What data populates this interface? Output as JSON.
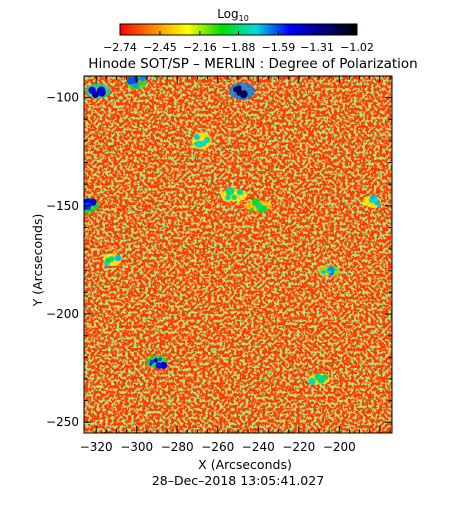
{
  "chart_data": {
    "type": "heatmap",
    "title": "Hinode SOT/SP – MERLIN : Degree of Polarization",
    "xlabel": "X (Arcseconds)",
    "ylabel": "Y (Arcseconds)",
    "xlim": [
      -326,
      -174
    ],
    "ylim": [
      -255,
      -90
    ],
    "xticks": [
      -320,
      -300,
      -280,
      -260,
      -240,
      -220,
      -200
    ],
    "yticks": [
      -100,
      -150,
      -200,
      -250
    ],
    "xtick_labels": [
      "−320",
      "−300",
      "−280",
      "−260",
      "−240",
      "−220",
      "−200"
    ],
    "ytick_labels": [
      "−100",
      "−150",
      "−200",
      "−250"
    ],
    "colorbar": {
      "label_main": "Log",
      "label_sub": "10",
      "scale": "log10",
      "range": [
        -2.74,
        -1.02
      ],
      "ticks": [
        -2.74,
        -2.45,
        -2.16,
        -1.88,
        -1.59,
        -1.31,
        -1.02
      ],
      "tick_labels": [
        "−2.74",
        "−2.45",
        "−2.16",
        "−1.88",
        "−1.59",
        "−1.31",
        "−1.02"
      ],
      "colormap": [
        "#ff0000",
        "#ff8c00",
        "#ffff00",
        "#00dd00",
        "#00dddd",
        "#0000ff",
        "#000080",
        "#000000"
      ]
    },
    "field_description_colors": {
      "background_dominant": "#ff3300",
      "speckle": "#ffaa00",
      "network_green": "#66cc33",
      "network_cyan": "#00bbcc",
      "strong_blue": "#0011cc"
    },
    "strong_polarization_patches": [
      {
        "x": -248,
        "y": -97,
        "value": -1.2
      },
      {
        "x": -319,
        "y": -97,
        "value": -1.4
      },
      {
        "x": -300,
        "y": -93,
        "value": -1.6
      },
      {
        "x": -325,
        "y": -150,
        "value": -1.5
      },
      {
        "x": -290,
        "y": -222,
        "value": -1.5
      },
      {
        "x": -268,
        "y": -120,
        "value": -1.8
      },
      {
        "x": -252,
        "y": -145,
        "value": -1.8
      },
      {
        "x": -240,
        "y": -150,
        "value": -1.9
      },
      {
        "x": -205,
        "y": -180,
        "value": -1.7
      },
      {
        "x": -184,
        "y": -148,
        "value": -1.8
      },
      {
        "x": -210,
        "y": -230,
        "value": -1.8
      },
      {
        "x": -312,
        "y": -175,
        "value": -1.8
      }
    ],
    "grid": false
  },
  "footer": {
    "timestamp": "28–Dec–2018 13:05:41.027"
  }
}
